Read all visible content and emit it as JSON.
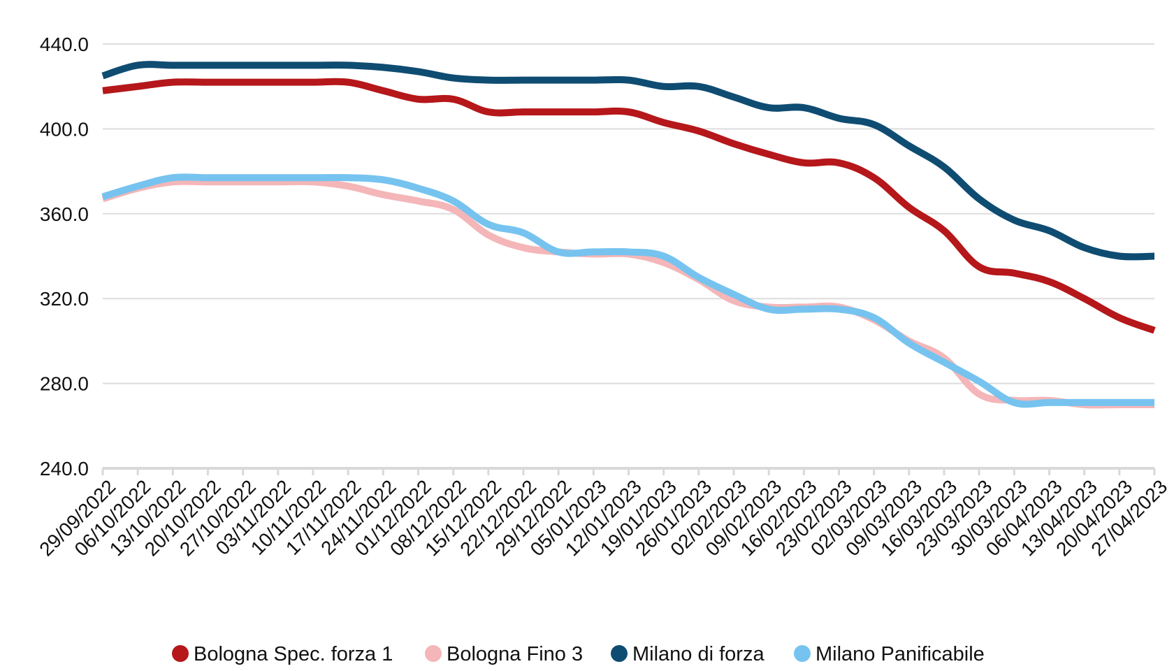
{
  "chart_data": {
    "type": "line",
    "title": "",
    "xlabel": "",
    "ylabel": "",
    "ylim": [
      240,
      440
    ],
    "yticks": [
      "440.0",
      "400.0",
      "360.0",
      "320.0",
      "280.0",
      "240.0"
    ],
    "ytick_values": [
      440,
      400,
      360,
      320,
      280,
      240
    ],
    "grid": true,
    "legend_position": "bottom-center",
    "x": [
      "29/09/2022",
      "06/10/2022",
      "13/10/2022",
      "20/10/2022",
      "27/10/2022",
      "03/11/2022",
      "10/11/2022",
      "17/11/2022",
      "24/11/2022",
      "01/12/2022",
      "08/12/2022",
      "15/12/2022",
      "22/12/2022",
      "29/12/2022",
      "05/01/2023",
      "12/01/2023",
      "19/01/2023",
      "26/01/2023",
      "02/02/2023",
      "09/02/2023",
      "16/02/2023",
      "23/02/2023",
      "02/03/2023",
      "09/03/2023",
      "16/03/2023",
      "23/03/2023",
      "30/03/2023",
      "06/04/2023",
      "13/04/2023",
      "20/04/2023",
      "27/04/2023"
    ],
    "series": [
      {
        "name": "Bologna Spec. forza 1",
        "color": "#b5171a",
        "values": [
          418,
          420,
          422,
          422,
          422,
          422,
          422,
          422,
          418,
          414,
          414,
          408,
          408,
          408,
          408,
          408,
          403,
          399,
          393,
          388,
          384,
          384,
          377,
          363,
          352,
          335,
          332,
          328,
          320,
          311,
          305
        ]
      },
      {
        "name": "Bologna Fino 3",
        "color": "#f4b6b8",
        "values": [
          367,
          372,
          375,
          375,
          375,
          375,
          375,
          373,
          369,
          366,
          362,
          350,
          344,
          342,
          341,
          341,
          337,
          329,
          319,
          316,
          316,
          316,
          310,
          300,
          292,
          275,
          272,
          272,
          270,
          270,
          270
        ]
      },
      {
        "name": "Milano di forza",
        "color": "#0f4c72",
        "values": [
          425,
          430,
          430,
          430,
          430,
          430,
          430,
          430,
          429,
          427,
          424,
          423,
          423,
          423,
          423,
          423,
          420,
          420,
          415,
          410,
          410,
          405,
          402,
          392,
          382,
          367,
          357,
          352,
          344,
          340,
          340
        ]
      },
      {
        "name": "Milano Panificabile",
        "color": "#76c3ef",
        "values": [
          368,
          373,
          377,
          377,
          377,
          377,
          377,
          377,
          376,
          372,
          366,
          355,
          351,
          342,
          342,
          342,
          340,
          330,
          322,
          315,
          315,
          315,
          311,
          299,
          290,
          281,
          271,
          271,
          271,
          271,
          271
        ]
      }
    ]
  }
}
